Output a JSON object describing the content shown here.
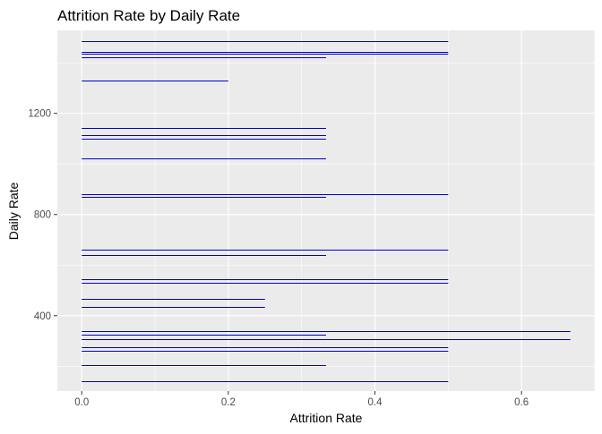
{
  "chart_data": {
    "type": "bar",
    "title": "Attrition Rate by Daily Rate",
    "xlabel": "Attrition Rate",
    "ylabel": "Daily Rate",
    "xlim": [
      -0.0333,
      0.7
    ],
    "ylim": [
      102,
      1528
    ],
    "xticks": [
      0.0,
      0.2,
      0.4,
      0.6
    ],
    "xtick_labels": [
      "0.0",
      "0.2",
      "0.4",
      "0.6"
    ],
    "yticks": [
      400,
      800,
      1200
    ],
    "ytick_labels": [
      "400",
      "800",
      "1200"
    ],
    "grid": true,
    "bar_color": "#0000CD",
    "panel_color": "#EBEBEB",
    "grid_color": "#FFFFFF",
    "series": [
      {
        "points": [
          {
            "y": 1485,
            "x": 0.5
          },
          {
            "y": 1444,
            "x": 0.5
          },
          {
            "y": 1436,
            "x": 0.5
          },
          {
            "y": 1421,
            "x": 0.3333
          },
          {
            "y": 1330,
            "x": 0.2
          },
          {
            "y": 1143,
            "x": 0.3333
          },
          {
            "y": 1113,
            "x": 0.3333
          },
          {
            "y": 1101,
            "x": 0.3333
          },
          {
            "y": 1021,
            "x": 0.3333
          },
          {
            "y": 880,
            "x": 0.5
          },
          {
            "y": 870,
            "x": 0.3333
          },
          {
            "y": 661,
            "x": 0.5
          },
          {
            "y": 640,
            "x": 0.3333
          },
          {
            "y": 545,
            "x": 0.5
          },
          {
            "y": 531,
            "x": 0.5
          },
          {
            "y": 466,
            "x": 0.25
          },
          {
            "y": 436,
            "x": 0.25
          },
          {
            "y": 339,
            "x": 0.6667
          },
          {
            "y": 325,
            "x": 0.3333
          },
          {
            "y": 307,
            "x": 0.6667
          },
          {
            "y": 274,
            "x": 0.5
          },
          {
            "y": 260,
            "x": 0.5
          },
          {
            "y": 203,
            "x": 0.3333
          },
          {
            "y": 141,
            "x": 0.5
          }
        ]
      }
    ]
  }
}
